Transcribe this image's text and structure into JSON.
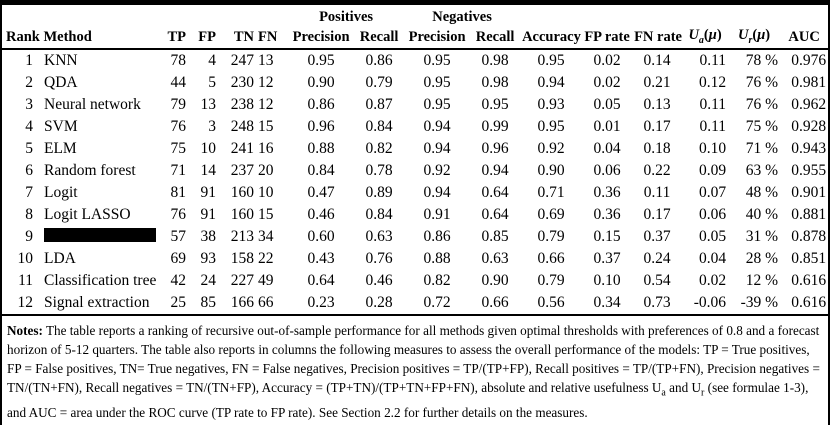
{
  "table": {
    "groups": [
      "Positives",
      "Negatives"
    ],
    "columns": {
      "rank_method": "Rank Method",
      "tp": "TP",
      "fp": "FP",
      "tn": "TN",
      "fn": "FN",
      "precision_pos": "Precision",
      "recall_pos": "Recall",
      "precision_neg": "Precision",
      "recall_neg": "Recall",
      "accuracy": "Accuracy",
      "fp_rate": "FP rate",
      "fn_rate": "FN rate",
      "auc": "AUC"
    },
    "ua": {
      "base": "U",
      "sub": "a",
      "open": "(",
      "mu": "μ",
      "close": ")"
    },
    "ur": {
      "base": "U",
      "sub": "r",
      "open": "(",
      "mu": "μ",
      "close": ")"
    },
    "rows": [
      {
        "rank": "1",
        "method": "KNN",
        "redacted": false,
        "values": [
          "78",
          "4",
          "247",
          "13",
          "0.95",
          "0.86",
          "0.95",
          "0.98",
          "0.95",
          "0.02",
          "0.14",
          "0.11",
          "78 %",
          "0.976"
        ]
      },
      {
        "rank": "2",
        "method": "QDA",
        "redacted": false,
        "values": [
          "44",
          "5",
          "230",
          "12",
          "0.90",
          "0.79",
          "0.95",
          "0.98",
          "0.94",
          "0.02",
          "0.21",
          "0.12",
          "76 %",
          "0.981"
        ]
      },
      {
        "rank": "3",
        "method": "Neural network",
        "redacted": false,
        "values": [
          "79",
          "13",
          "238",
          "12",
          "0.86",
          "0.87",
          "0.95",
          "0.95",
          "0.93",
          "0.05",
          "0.13",
          "0.11",
          "76 %",
          "0.962"
        ]
      },
      {
        "rank": "4",
        "method": "SVM",
        "redacted": false,
        "values": [
          "76",
          "3",
          "248",
          "15",
          "0.96",
          "0.84",
          "0.94",
          "0.99",
          "0.95",
          "0.01",
          "0.17",
          "0.11",
          "75 %",
          "0.928"
        ]
      },
      {
        "rank": "5",
        "method": "ELM",
        "redacted": false,
        "values": [
          "75",
          "10",
          "241",
          "16",
          "0.88",
          "0.82",
          "0.94",
          "0.96",
          "0.92",
          "0.04",
          "0.18",
          "0.10",
          "71 %",
          "0.943"
        ]
      },
      {
        "rank": "6",
        "method": "Random forest",
        "redacted": false,
        "values": [
          "71",
          "14",
          "237",
          "20",
          "0.84",
          "0.78",
          "0.92",
          "0.94",
          "0.90",
          "0.06",
          "0.22",
          "0.09",
          "63 %",
          "0.955"
        ]
      },
      {
        "rank": "7",
        "method": "Logit",
        "redacted": false,
        "values": [
          "81",
          "91",
          "160",
          "10",
          "0.47",
          "0.89",
          "0.94",
          "0.64",
          "0.71",
          "0.36",
          "0.11",
          "0.07",
          "48 %",
          "0.901"
        ]
      },
      {
        "rank": "8",
        "method": "Logit LASSO",
        "redacted": false,
        "values": [
          "76",
          "91",
          "160",
          "15",
          "0.46",
          "0.84",
          "0.91",
          "0.64",
          "0.69",
          "0.36",
          "0.17",
          "0.06",
          "40 %",
          "0.881"
        ]
      },
      {
        "rank": "9",
        "method": "",
        "redacted": true,
        "values": [
          "57",
          "38",
          "213",
          "34",
          "0.60",
          "0.63",
          "0.86",
          "0.85",
          "0.79",
          "0.15",
          "0.37",
          "0.05",
          "31 %",
          "0.878"
        ]
      },
      {
        "rank": "10",
        "method": "LDA",
        "redacted": false,
        "values": [
          "69",
          "93",
          "158",
          "22",
          "0.43",
          "0.76",
          "0.88",
          "0.63",
          "0.66",
          "0.37",
          "0.24",
          "0.04",
          "28 %",
          "0.851"
        ]
      },
      {
        "rank": "11",
        "method": "Classification tree",
        "redacted": false,
        "values": [
          "42",
          "24",
          "227",
          "49",
          "0.64",
          "0.46",
          "0.82",
          "0.90",
          "0.79",
          "0.10",
          "0.54",
          "0.02",
          "12 %",
          "0.616"
        ]
      },
      {
        "rank": "12",
        "method": "Signal extraction",
        "redacted": false,
        "values": [
          "25",
          "85",
          "166",
          "66",
          "0.23",
          "0.28",
          "0.72",
          "0.66",
          "0.56",
          "0.34",
          "0.73",
          "-0.06",
          "-39 %",
          "0.616"
        ]
      }
    ]
  },
  "notes": {
    "segments": [
      {
        "b": "Notes:"
      },
      {
        "t": " The table reports a ranking of recursive out-of-sample performance for all methods given optimal thresholds with preferences of 0.8 and a forecast horizon of 5-12 quarters. The table also reports in columns the following measures to assess the overall performance of the models: TP = True positives, FP = False positives, TN= True negatives, FN = False negatives, Precision positives = TP/(TP+FP), Recall positives = TP/(TP+FN), Precision negatives = TN/(TN+FN), Recall negatives = TN/(TN+FP), Accuracy = (TP+TN)/(TP+TN+FP+FN), absolute and relative usefulness U"
      },
      {
        "s": "a"
      },
      {
        "t": " and U"
      },
      {
        "s": "r"
      },
      {
        "t": " (see formulae 1-3), and AUC = area under the ROC curve (TP rate to FP rate). See Section 2.2 for further details on the measures."
      }
    ]
  }
}
